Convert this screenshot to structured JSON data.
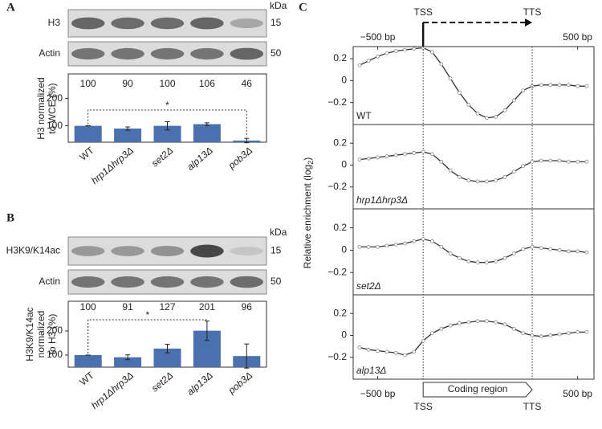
{
  "panel_labels": [
    "A",
    "B",
    "C"
  ],
  "blots": [
    {
      "unit": "kDa",
      "rows": [
        {
          "label": "H3",
          "size": 15
        },
        {
          "label": "Actin",
          "size": 50
        }
      ]
    },
    {
      "unit": "kDa",
      "rows": [
        {
          "label": "H3K9/K14ac",
          "size": 15
        },
        {
          "label": "Actin",
          "size": 50
        }
      ]
    }
  ],
  "metagene": {
    "ylabel": [
      "Relative enrichment (log",
      "2",
      ")"
    ],
    "region_label": "Coding region"
  },
  "chart_data": [
    {
      "type": "bar",
      "ylabel": [
        "H3 normalized",
        "to WCE (%)"
      ],
      "categories": [
        "WT",
        "hrp1Δhrp3Δ",
        "set2Δ",
        "alp13Δ",
        "pob3Δ"
      ],
      "values": [
        100,
        90,
        100,
        106,
        46
      ],
      "errors": [
        0,
        6,
        15,
        5,
        8
      ],
      "color": "#4a70ad",
      "ylim": [
        40,
        290
      ],
      "yticks": [
        100,
        200
      ],
      "annotation": "*",
      "compare": [
        0,
        4
      ]
    },
    {
      "type": "bar",
      "ylabel": [
        "H3K9/K14ac",
        "normalized",
        "to H3 (%)"
      ],
      "categories": [
        "WT",
        "hrp1Δhrp3Δ",
        "set2Δ",
        "alp13Δ",
        "pob3Δ"
      ],
      "values": [
        100,
        91,
        127,
        201,
        96
      ],
      "errors": [
        0,
        10,
        18,
        40,
        50
      ],
      "color": "#4a70ad",
      "ylim": [
        50,
        323
      ],
      "yticks": [
        100,
        200
      ],
      "annotation": "*",
      "compare": [
        0,
        3
      ]
    },
    {
      "type": "line",
      "label": "WT",
      "color": "#333333",
      "xlim": [
        -770,
        1880
      ],
      "ylim": [
        -0.4,
        0.31
      ],
      "xticks": [
        {
          "value": -500,
          "label": "−500 bp"
        },
        {
          "value": 0,
          "label": "TSS"
        },
        {
          "value": 1200,
          "label": "TTS"
        },
        {
          "value": 1700,
          "label": "500 bp"
        }
      ],
      "yticks": [
        0.2,
        0,
        {
          "value": -0.2,
          "label": "−0.2"
        }
      ],
      "x": [
        -700,
        -600,
        -500,
        -400,
        -300,
        -200,
        -100,
        0,
        100,
        200,
        300,
        400,
        500,
        600,
        700,
        800,
        900,
        1000,
        1100,
        1200,
        1300,
        1400,
        1500,
        1600,
        1700,
        1800
      ],
      "values": [
        0.14,
        0.18,
        0.22,
        0.25,
        0.27,
        0.28,
        0.29,
        0.3,
        0.26,
        0.15,
        0.02,
        -0.11,
        -0.22,
        -0.3,
        -0.34,
        -0.33,
        -0.27,
        -0.18,
        -0.09,
        -0.05,
        -0.04,
        -0.04,
        -0.04,
        -0.04,
        -0.05,
        -0.05
      ]
    },
    {
      "type": "line",
      "label": "hrp1Δhrp3Δ",
      "color": "#333333",
      "xlim": [
        -770,
        1880
      ],
      "ylim": [
        -0.4,
        0.37
      ],
      "yticks": [
        0.2,
        0,
        {
          "value": -0.2,
          "label": "−0.2"
        }
      ],
      "x": [
        -700,
        -600,
        -500,
        -400,
        -300,
        -200,
        -100,
        0,
        100,
        200,
        300,
        400,
        500,
        600,
        700,
        800,
        900,
        1000,
        1100,
        1200,
        1300,
        1400,
        1500,
        1600,
        1700,
        1800
      ],
      "values": [
        0.05,
        0.06,
        0.07,
        0.08,
        0.09,
        0.1,
        0.11,
        0.12,
        0.1,
        0.03,
        -0.05,
        -0.11,
        -0.14,
        -0.15,
        -0.15,
        -0.14,
        -0.11,
        -0.06,
        -0.01,
        0.03,
        0.04,
        0.04,
        0.04,
        0.03,
        0.03,
        0.03
      ]
    },
    {
      "type": "line",
      "label": "set2Δ",
      "color": "#333333",
      "xlim": [
        -770,
        1880
      ],
      "ylim": [
        -0.4,
        0.37
      ],
      "yticks": [
        0.2,
        0,
        {
          "value": -0.2,
          "label": "−0.2"
        }
      ],
      "x": [
        -700,
        -600,
        -500,
        -400,
        -300,
        -200,
        -100,
        0,
        100,
        200,
        300,
        400,
        500,
        600,
        700,
        800,
        900,
        1000,
        1100,
        1200,
        1300,
        1400,
        1500,
        1600,
        1700,
        1800
      ],
      "values": [
        0.03,
        0.03,
        0.03,
        0.04,
        0.05,
        0.06,
        0.08,
        0.1,
        0.08,
        0.03,
        -0.03,
        -0.07,
        -0.1,
        -0.11,
        -0.11,
        -0.1,
        -0.07,
        -0.03,
        0.01,
        0.03,
        0.02,
        0.01,
        0.0,
        -0.01,
        -0.01,
        -0.02
      ]
    },
    {
      "type": "line",
      "label": "alp13Δ",
      "color": "#333333",
      "xlim": [
        -770,
        1880
      ],
      "ylim": [
        -0.4,
        0.37
      ],
      "xticks": [
        {
          "value": -500,
          "label": "−500 bp"
        },
        {
          "value": 0,
          "label": "TSS"
        },
        {
          "value": 1200,
          "label": "TTS"
        },
        {
          "value": 1700,
          "label": "500 bp"
        }
      ],
      "yticks": [
        0.2,
        0,
        {
          "value": -0.2,
          "label": "−0.2"
        }
      ],
      "x": [
        -700,
        -600,
        -500,
        -400,
        -300,
        -200,
        -100,
        0,
        100,
        200,
        300,
        400,
        500,
        600,
        700,
        800,
        900,
        1000,
        1100,
        1200,
        1300,
        1400,
        1500,
        1600,
        1700,
        1800
      ],
      "values": [
        -0.11,
        -0.13,
        -0.14,
        -0.15,
        -0.16,
        -0.18,
        -0.15,
        -0.05,
        0.02,
        0.06,
        0.09,
        0.11,
        0.12,
        0.13,
        0.13,
        0.12,
        0.1,
        0.06,
        0.02,
        0.0,
        -0.01,
        0.0,
        0.01,
        0.02,
        0.03,
        0.03
      ]
    }
  ]
}
